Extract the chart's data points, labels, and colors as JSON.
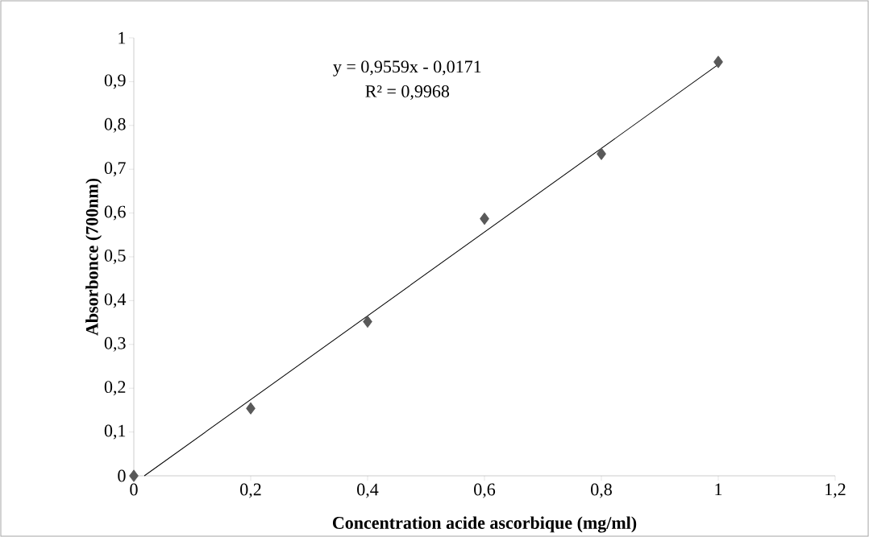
{
  "chart_data": {
    "type": "scatter",
    "xlabel": "Concentration acide ascorbique (mg/ml)",
    "ylabel": "Absorbonce (700nm)",
    "annotations": [
      "y = 0,9559x - 0,0171",
      "R² = 0,9968"
    ],
    "xlim": [
      0,
      1.2
    ],
    "ylim": [
      0,
      1
    ],
    "xticks": [
      0,
      {
        "value": 0.2,
        "label": "0,2"
      },
      {
        "value": 0.4,
        "label": "0,4"
      },
      {
        "value": 0.6,
        "label": "0,6"
      },
      {
        "value": 0.8,
        "label": "0,8"
      },
      1,
      {
        "value": 1.2,
        "label": "1,2"
      }
    ],
    "yticks": [
      0,
      {
        "value": 0.1,
        "label": "0,1"
      },
      {
        "value": 0.2,
        "label": "0,2"
      },
      {
        "value": 0.3,
        "label": "0,3"
      },
      {
        "value": 0.4,
        "label": "0,4"
      },
      {
        "value": 0.5,
        "label": "0,5"
      },
      {
        "value": 0.6,
        "label": "0,6"
      },
      {
        "value": 0.7,
        "label": "0,7"
      },
      {
        "value": 0.8,
        "label": "0,8"
      },
      {
        "value": 0.9,
        "label": "0,9"
      },
      1
    ],
    "series": [
      {
        "color": "#595959",
        "marker": "diamond",
        "x": [
          0,
          0.2,
          0.4,
          0.6,
          0.8,
          1
        ],
        "values": [
          0,
          0.154,
          0.352,
          0.587,
          0.735,
          0.945
        ]
      },
      {
        "type": "line",
        "color": "#000000",
        "marker": "none",
        "x": [
          0.018,
          1
        ],
        "values": [
          0,
          0.939
        ]
      }
    ]
  }
}
